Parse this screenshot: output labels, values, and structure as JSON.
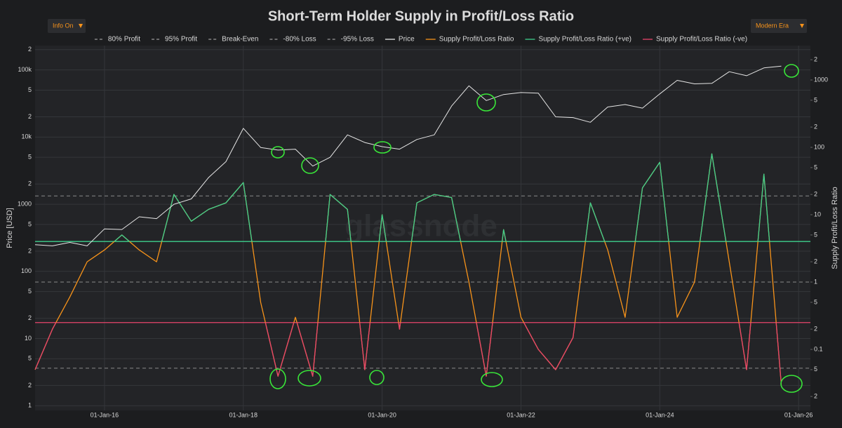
{
  "chart_data": {
    "type": "line",
    "title": "Short-Term Holder Supply in Profit/Loss Ratio",
    "controls": {
      "left": "Info On",
      "right": "Modern Era"
    },
    "watermark": "glassnode",
    "ylabel": "Price [USD]",
    "y2label": "Supply Profit/Loss Ratio",
    "log_y": true,
    "log_y2": true,
    "grid": true,
    "x": [
      2015.0,
      2015.25,
      2015.5,
      2015.75,
      2016.0,
      2016.25,
      2016.5,
      2016.75,
      2017.0,
      2017.25,
      2017.5,
      2017.75,
      2018.0,
      2018.25,
      2018.5,
      2018.75,
      2019.0,
      2019.25,
      2019.5,
      2019.75,
      2020.0,
      2020.25,
      2020.5,
      2020.75,
      2021.0,
      2021.25,
      2021.5,
      2021.75,
      2022.0,
      2022.25,
      2022.5,
      2022.75,
      2023.0,
      2023.25,
      2023.5,
      2023.75,
      2024.0,
      2024.25,
      2024.5,
      2024.75,
      2025.0,
      2025.25,
      2025.5,
      2025.75
    ],
    "xlim": [
      2015.0,
      2026.17
    ],
    "xticks": [
      {
        "value": 2016,
        "label": "01-Jan-16"
      },
      {
        "value": 2018,
        "label": "01-Jan-18"
      },
      {
        "value": 2020,
        "label": "01-Jan-20"
      },
      {
        "value": 2022,
        "label": "01-Jan-22"
      },
      {
        "value": 2024,
        "label": "01-Jan-24"
      },
      {
        "value": 2026,
        "label": "01-Jan-26"
      }
    ],
    "ylim": [
      0.85,
      230000
    ],
    "yticks": [
      1,
      2,
      5,
      10,
      {
        "value": 20,
        "label": "2"
      },
      {
        "value": 50,
        "label": "5"
      },
      100,
      {
        "value": 200,
        "label": "2"
      },
      {
        "value": 500,
        "label": "5"
      },
      1000,
      {
        "value": 2000,
        "label": "2"
      },
      {
        "value": 5000,
        "label": "5"
      },
      {
        "value": 10000,
        "label": "10k"
      },
      {
        "value": 20000,
        "label": "2"
      },
      {
        "value": 50000,
        "label": "5"
      },
      {
        "value": 100000,
        "label": "100k"
      },
      {
        "value": 200000,
        "label": "2"
      }
    ],
    "y2lim": [
      0.0124,
      3240
    ],
    "y2ticks": [
      {
        "value": 0.02,
        "label": "2"
      },
      {
        "value": 0.05,
        "label": "5"
      },
      0.1,
      {
        "value": 0.2,
        "label": "2"
      },
      {
        "value": 0.5,
        "label": "5"
      },
      1,
      2,
      5,
      10,
      {
        "value": 20,
        "label": "2"
      },
      {
        "value": 50,
        "label": "5"
      },
      100,
      {
        "value": 200,
        "label": "2"
      },
      {
        "value": 500,
        "label": "5"
      },
      1000,
      {
        "value": 2000,
        "label": "2"
      }
    ],
    "reference_lines": [
      {
        "name": "80% Profit",
        "value": 4,
        "color": "#3ecf8e",
        "style": "solid"
      },
      {
        "name": "95% Profit",
        "value": 19,
        "color": "#8a8a8a",
        "style": "dashed"
      },
      {
        "name": "Break-Even",
        "value": 1,
        "color": "#8a8a8a",
        "style": "dashed"
      },
      {
        "name": "-80% Loss",
        "value": 0.25,
        "color": "#e8456b",
        "style": "solid"
      },
      {
        "name": "-95% Loss",
        "value": 0.0526,
        "color": "#8a8a8a",
        "style": "dashed"
      }
    ],
    "series": [
      {
        "name": "Price",
        "color": "#e6e6e6",
        "axis": "y",
        "values": [
          250,
          240,
          270,
          240,
          430,
          420,
          650,
          610,
          1000,
          1200,
          2500,
          4300,
          13500,
          7000,
          6400,
          6600,
          3700,
          5000,
          10800,
          8300,
          7200,
          6600,
          9200,
          10800,
          29000,
          58000,
          35000,
          43000,
          46000,
          45000,
          20000,
          19500,
          16600,
          28000,
          30500,
          27000,
          44000,
          70000,
          62000,
          63000,
          94000,
          82000,
          107000,
          114000
        ]
      },
      {
        "name": "Supply Profit/Loss Ratio",
        "color": "#f7931a",
        "axis": "y2",
        "values": [
          0.05,
          0.2,
          0.6,
          2,
          3,
          5,
          3,
          2,
          20,
          8,
          12,
          15,
          30,
          0.5,
          0.04,
          0.3,
          0.04,
          20,
          12,
          0.05,
          10,
          0.2,
          15,
          20,
          18,
          1,
          0.04,
          6,
          0.3,
          0.1,
          0.05,
          0.15,
          15,
          3,
          0.3,
          25,
          60,
          0.3,
          1,
          80,
          2,
          0.05,
          40,
          0.03
        ]
      }
    ],
    "highlights": [
      {
        "name": "Supply Profit/Loss Ratio (+ve)",
        "color": "#3ecf8e"
      },
      {
        "name": "Supply Profit/Loss Ratio (-ve)",
        "color": "#e8456b"
      }
    ]
  }
}
